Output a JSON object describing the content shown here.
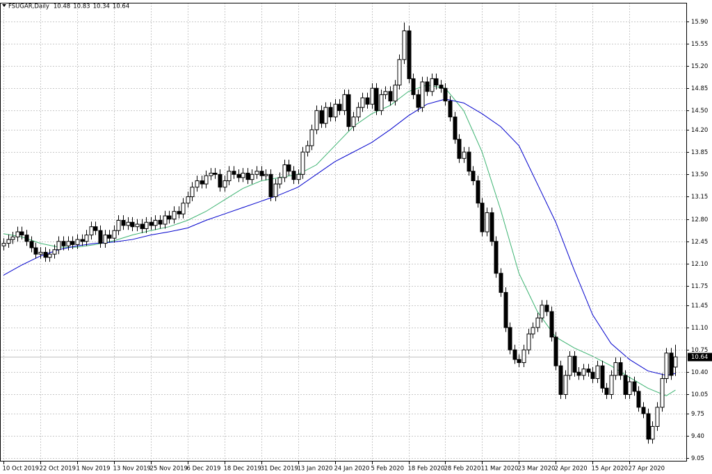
{
  "chart_data": {
    "type": "candlestick",
    "title": "FSUGAR,Daily",
    "categories": [
      "10 Oct 2019",
      null,
      null,
      null,
      null,
      null,
      null,
      null,
      "22 Oct 2019",
      null,
      null,
      null,
      null,
      null,
      null,
      null,
      "1 Nov 2019",
      null,
      null,
      null,
      null,
      null,
      null,
      null,
      "13 Nov 2019",
      null,
      null,
      null,
      null,
      null,
      null,
      null,
      "25 Nov 2019",
      null,
      null,
      null,
      null,
      null,
      null,
      null,
      "6 Dec 2019",
      null,
      null,
      null,
      null,
      null,
      null,
      null,
      "18 Dec 2019",
      null,
      null,
      null,
      null,
      null,
      null,
      null,
      "31 Dec 2019",
      null,
      null,
      null,
      null,
      null,
      null,
      null,
      "13 Jan 2020",
      null,
      null,
      null,
      null,
      null,
      null,
      null,
      "24 Jan 2020",
      null,
      null,
      null,
      null,
      null,
      null,
      null,
      "5 Feb 2020",
      null,
      null,
      null,
      null,
      null,
      null,
      null,
      "18 Feb 2020",
      null,
      null,
      null,
      null,
      null,
      null,
      null,
      "28 Feb 2020",
      null,
      null,
      null,
      null,
      null,
      null,
      null,
      "11 Mar 2020",
      null,
      null,
      null,
      null,
      null,
      null,
      null,
      "23 Mar 2020",
      null,
      null,
      null,
      null,
      null,
      null,
      null,
      "2 Apr 2020",
      null,
      null,
      null,
      null,
      null,
      null,
      null,
      "15 Apr 2020",
      null,
      null,
      null,
      null,
      null,
      null,
      null,
      "27 Apr 2020",
      null,
      null,
      null,
      null,
      null,
      null,
      null,
      null,
      null,
      null
    ],
    "open": [
      12.38,
      12.42,
      12.48,
      12.52,
      12.6,
      12.55,
      12.45,
      12.35,
      12.25,
      12.28,
      12.2,
      12.25,
      12.32,
      12.45,
      12.38,
      12.45,
      12.4,
      12.48,
      12.45,
      12.55,
      12.68,
      12.62,
      12.42,
      12.55,
      12.5,
      12.62,
      12.78,
      12.7,
      12.75,
      12.68,
      12.72,
      12.65,
      12.75,
      12.7,
      12.78,
      12.72,
      12.85,
      12.8,
      12.92,
      12.88,
      13.05,
      13.15,
      13.3,
      13.4,
      13.35,
      13.48,
      13.52,
      13.5,
      13.3,
      13.4,
      13.55,
      13.5,
      13.45,
      13.52,
      13.42,
      13.5,
      13.55,
      13.48,
      13.5,
      13.15,
      13.35,
      13.45,
      13.65,
      13.55,
      13.42,
      13.5,
      13.85,
      13.95,
      14.2,
      14.5,
      14.3,
      14.55,
      14.4,
      14.6,
      14.5,
      14.75,
      14.25,
      14.4,
      14.55,
      14.7,
      14.6,
      14.85,
      14.5,
      14.75,
      14.8,
      14.65,
      14.9,
      15.3,
      15.75,
      15.0,
      14.75,
      14.55,
      14.95,
      14.8,
      15.0,
      14.9,
      14.85,
      14.65,
      14.4,
      14.05,
      13.75,
      13.85,
      13.55,
      13.4,
      13.05,
      12.6,
      12.9,
      12.45,
      11.95,
      11.65,
      11.1,
      10.75,
      10.6,
      10.55,
      10.75,
      11.0,
      11.1,
      11.25,
      11.45,
      11.35,
      10.95,
      10.5,
      10.05,
      10.35,
      10.65,
      10.4,
      10.35,
      10.45,
      10.4,
      10.3,
      10.5,
      10.15,
      10.05,
      10.35,
      10.55,
      10.35,
      10.05,
      10.25,
      10.1,
      9.85,
      9.75,
      9.35,
      9.55,
      9.85,
      10.3,
      10.7,
      10.48
    ],
    "high": [
      12.5,
      12.56,
      12.6,
      12.68,
      12.68,
      12.63,
      12.53,
      12.43,
      12.36,
      12.36,
      12.33,
      12.4,
      12.53,
      12.53,
      12.53,
      12.53,
      12.56,
      12.56,
      12.63,
      12.76,
      12.76,
      12.7,
      12.63,
      12.63,
      12.7,
      12.86,
      12.86,
      12.83,
      12.83,
      12.8,
      12.8,
      12.83,
      12.83,
      12.86,
      12.86,
      12.93,
      12.93,
      13.0,
      13.0,
      13.13,
      13.23,
      13.38,
      13.48,
      13.48,
      13.56,
      13.6,
      13.6,
      13.58,
      13.48,
      13.63,
      13.63,
      13.58,
      13.6,
      13.6,
      13.58,
      13.63,
      13.63,
      13.58,
      13.58,
      13.43,
      13.53,
      13.73,
      13.73,
      13.63,
      13.58,
      13.93,
      14.03,
      14.28,
      14.58,
      14.58,
      14.63,
      14.63,
      14.68,
      14.68,
      14.83,
      14.83,
      14.48,
      14.63,
      14.78,
      14.78,
      14.93,
      14.93,
      14.83,
      14.88,
      14.88,
      14.98,
      15.38,
      15.88,
      15.83,
      15.08,
      14.83,
      15.03,
      15.03,
      15.08,
      15.08,
      14.98,
      14.93,
      14.73,
      14.48,
      14.13,
      13.93,
      13.93,
      13.63,
      13.48,
      13.13,
      12.98,
      12.98,
      12.53,
      12.03,
      11.73,
      11.18,
      10.83,
      10.68,
      10.83,
      11.08,
      11.18,
      11.33,
      11.53,
      11.53,
      11.43,
      11.03,
      10.58,
      10.43,
      10.73,
      10.73,
      10.48,
      10.53,
      10.53,
      10.48,
      10.58,
      10.58,
      10.23,
      10.43,
      10.63,
      10.63,
      10.43,
      10.33,
      10.33,
      10.18,
      9.93,
      9.83,
      9.63,
      9.93,
      10.38,
      10.78,
      10.78,
      10.83
    ],
    "low": [
      12.31,
      12.35,
      12.41,
      12.45,
      12.48,
      12.38,
      12.28,
      12.18,
      12.18,
      12.13,
      12.13,
      12.18,
      12.25,
      12.31,
      12.31,
      12.33,
      12.33,
      12.38,
      12.38,
      12.48,
      12.55,
      12.35,
      12.35,
      12.43,
      12.43,
      12.55,
      12.63,
      12.63,
      12.61,
      12.61,
      12.58,
      12.58,
      12.63,
      12.63,
      12.65,
      12.65,
      12.73,
      12.73,
      12.81,
      12.81,
      12.98,
      13.08,
      13.23,
      13.28,
      13.28,
      13.41,
      13.43,
      13.23,
      13.23,
      13.33,
      13.43,
      13.38,
      13.38,
      13.35,
      13.35,
      13.43,
      13.41,
      13.41,
      13.08,
      13.08,
      13.28,
      13.38,
      13.48,
      13.35,
      13.35,
      13.43,
      13.78,
      13.88,
      14.13,
      14.23,
      14.23,
      14.33,
      14.33,
      14.43,
      14.43,
      14.18,
      14.18,
      14.33,
      14.48,
      14.53,
      14.53,
      14.43,
      14.43,
      14.68,
      14.58,
      14.58,
      14.83,
      15.23,
      14.93,
      14.68,
      14.48,
      14.48,
      14.73,
      14.73,
      14.83,
      14.78,
      14.58,
      14.33,
      13.98,
      13.68,
      13.68,
      13.48,
      13.33,
      12.98,
      12.53,
      12.53,
      12.38,
      11.88,
      11.58,
      11.03,
      10.68,
      10.53,
      10.48,
      10.48,
      10.68,
      10.93,
      11.03,
      11.18,
      11.28,
      10.88,
      10.43,
      9.98,
      9.98,
      10.28,
      10.33,
      10.28,
      10.28,
      10.33,
      10.23,
      10.23,
      10.08,
      9.98,
      9.98,
      10.28,
      10.28,
      9.98,
      9.98,
      10.03,
      9.78,
      9.68,
      9.28,
      9.28,
      9.48,
      9.78,
      10.23,
      10.28,
      10.34
    ],
    "close": [
      12.42,
      12.48,
      12.52,
      12.6,
      12.55,
      12.45,
      12.35,
      12.25,
      12.28,
      12.2,
      12.25,
      12.32,
      12.45,
      12.38,
      12.45,
      12.4,
      12.48,
      12.45,
      12.55,
      12.68,
      12.62,
      12.42,
      12.55,
      12.5,
      12.62,
      12.78,
      12.7,
      12.75,
      12.68,
      12.72,
      12.65,
      12.75,
      12.7,
      12.78,
      12.72,
      12.85,
      12.8,
      12.92,
      12.88,
      13.05,
      13.15,
      13.3,
      13.4,
      13.35,
      13.48,
      13.52,
      13.5,
      13.3,
      13.4,
      13.55,
      13.5,
      13.45,
      13.52,
      13.42,
      13.5,
      13.55,
      13.48,
      13.5,
      13.15,
      13.35,
      13.45,
      13.65,
      13.55,
      13.42,
      13.5,
      13.85,
      13.95,
      14.2,
      14.5,
      14.3,
      14.55,
      14.4,
      14.6,
      14.5,
      14.75,
      14.25,
      14.4,
      14.55,
      14.7,
      14.6,
      14.85,
      14.5,
      14.75,
      14.8,
      14.65,
      14.9,
      15.3,
      15.75,
      15.0,
      14.75,
      14.55,
      14.95,
      14.8,
      15.0,
      14.9,
      14.85,
      14.65,
      14.4,
      14.05,
      13.75,
      13.85,
      13.55,
      13.4,
      13.05,
      12.6,
      12.9,
      12.45,
      11.95,
      11.65,
      11.1,
      10.75,
      10.6,
      10.55,
      10.75,
      11.0,
      11.1,
      11.25,
      11.45,
      11.35,
      10.95,
      10.5,
      10.05,
      10.35,
      10.65,
      10.4,
      10.35,
      10.45,
      10.4,
      10.3,
      10.5,
      10.15,
      10.05,
      10.35,
      10.55,
      10.35,
      10.05,
      10.25,
      10.1,
      9.85,
      9.75,
      9.35,
      9.55,
      9.85,
      10.3,
      10.7,
      10.35,
      10.64
    ],
    "up_color": "#ffffff",
    "down_color": "#000000",
    "lines": [
      {
        "color": "#3cb371",
        "x": [
          0,
          4,
          8,
          12,
          16,
          20,
          24,
          28,
          32,
          36,
          40,
          44,
          48,
          52,
          56,
          60,
          64,
          68,
          72,
          76,
          80,
          84,
          88,
          92,
          96,
          100,
          104,
          108,
          112,
          116,
          120,
          124,
          128,
          132,
          136,
          140,
          144,
          146
        ],
        "values": [
          12.57,
          12.52,
          12.42,
          12.36,
          12.36,
          12.4,
          12.46,
          12.55,
          12.62,
          12.68,
          12.78,
          12.92,
          13.1,
          13.28,
          13.4,
          13.45,
          13.5,
          13.65,
          13.95,
          14.25,
          14.45,
          14.58,
          14.8,
          14.9,
          14.85,
          14.5,
          13.85,
          12.95,
          11.95,
          11.35,
          10.95,
          10.78,
          10.65,
          10.5,
          10.32,
          10.15,
          10.03,
          10.12
        ]
      },
      {
        "color": "#0000cd",
        "x": [
          0,
          4,
          8,
          12,
          16,
          20,
          24,
          28,
          32,
          36,
          40,
          44,
          48,
          52,
          56,
          60,
          64,
          68,
          72,
          76,
          80,
          84,
          88,
          92,
          96,
          100,
          104,
          108,
          112,
          116,
          120,
          124,
          128,
          132,
          136,
          140,
          144,
          146
        ],
        "values": [
          11.92,
          12.08,
          12.22,
          12.32,
          12.38,
          12.42,
          12.44,
          12.48,
          12.55,
          12.6,
          12.66,
          12.78,
          12.88,
          12.98,
          13.08,
          13.18,
          13.3,
          13.5,
          13.7,
          13.85,
          14.0,
          14.2,
          14.42,
          14.6,
          14.68,
          14.62,
          14.45,
          14.25,
          13.95,
          13.35,
          12.75,
          12.0,
          11.3,
          10.85,
          10.6,
          10.42,
          10.35,
          10.38
        ]
      }
    ],
    "xlim": [
      -0.75,
      148.5
    ],
    "ylim": [
      9.0,
      16.19
    ],
    "yticks": [
      {
        "value": 15.9,
        "label": "15.90"
      },
      15.55,
      {
        "value": 15.2,
        "label": "15.20"
      },
      14.85,
      {
        "value": 14.5,
        "label": "14.50"
      },
      {
        "value": 14.2,
        "label": "14.20"
      },
      13.85,
      {
        "value": 13.5,
        "label": "13.50"
      },
      13.15,
      {
        "value": 12.8,
        "label": "12.80"
      },
      12.45,
      {
        "value": 12.1,
        "label": "12.10"
      },
      11.75,
      11.45,
      {
        "value": 11.1,
        "label": "11.10"
      },
      10.75,
      {
        "value": 10.4,
        "label": "10.40"
      },
      10.05,
      9.75,
      {
        "value": 9.4,
        "label": "9.40"
      },
      9.05
    ],
    "grid": true,
    "price_line_color": "#c0c0c0"
  }
}
